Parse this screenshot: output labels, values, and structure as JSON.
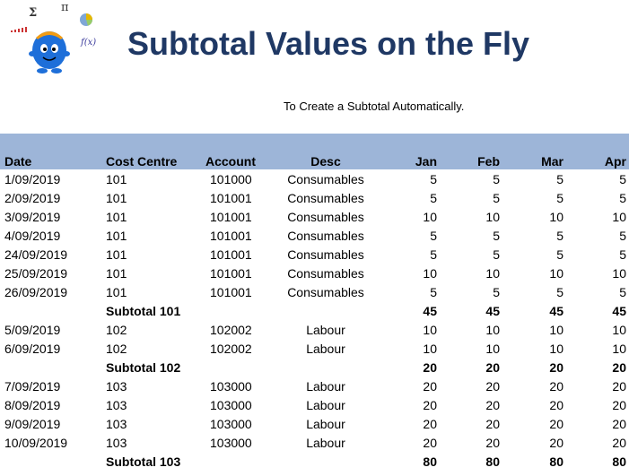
{
  "title": "Subtotal Values on the Fly",
  "subtitle": "To Create a Subtotal Automatically.",
  "logo": {
    "icons": [
      "sigma",
      "pi",
      "pie-chart",
      "f(x)",
      "bar-dots",
      "mascot"
    ],
    "sigma": "Σ",
    "pi": "π",
    "fx": "f(x)"
  },
  "table": {
    "columns": [
      "Date",
      "Cost Centre",
      "Account",
      "Desc",
      "Jan",
      "Feb",
      "Mar",
      "Apr"
    ],
    "rows": [
      {
        "type": "data",
        "date": "1/09/2019",
        "cc": "101",
        "account": "101000",
        "desc": "Consumables",
        "jan": "5",
        "feb": "5",
        "mar": "5",
        "apr": "5"
      },
      {
        "type": "data",
        "date": "2/09/2019",
        "cc": "101",
        "account": "101001",
        "desc": "Consumables",
        "jan": "5",
        "feb": "5",
        "mar": "5",
        "apr": "5"
      },
      {
        "type": "data",
        "date": "3/09/2019",
        "cc": "101",
        "account": "101001",
        "desc": "Consumables",
        "jan": "10",
        "feb": "10",
        "mar": "10",
        "apr": "10"
      },
      {
        "type": "data",
        "date": "4/09/2019",
        "cc": "101",
        "account": "101001",
        "desc": "Consumables",
        "jan": "5",
        "feb": "5",
        "mar": "5",
        "apr": "5"
      },
      {
        "type": "data",
        "date": "24/09/2019",
        "cc": "101",
        "account": "101001",
        "desc": "Consumables",
        "jan": "5",
        "feb": "5",
        "mar": "5",
        "apr": "5"
      },
      {
        "type": "data",
        "date": "25/09/2019",
        "cc": "101",
        "account": "101001",
        "desc": "Consumables",
        "jan": "10",
        "feb": "10",
        "mar": "10",
        "apr": "10"
      },
      {
        "type": "data",
        "date": "26/09/2019",
        "cc": "101",
        "account": "101001",
        "desc": "Consumables",
        "jan": "5",
        "feb": "5",
        "mar": "5",
        "apr": "5"
      },
      {
        "type": "subtotal",
        "label": "Subtotal 101",
        "jan": "45",
        "feb": "45",
        "mar": "45",
        "apr": "45"
      },
      {
        "type": "data",
        "date": "5/09/2019",
        "cc": "102",
        "account": "102002",
        "desc": "Labour",
        "jan": "10",
        "feb": "10",
        "mar": "10",
        "apr": "10"
      },
      {
        "type": "data",
        "date": "6/09/2019",
        "cc": "102",
        "account": "102002",
        "desc": "Labour",
        "jan": "10",
        "feb": "10",
        "mar": "10",
        "apr": "10"
      },
      {
        "type": "subtotal",
        "label": "Subtotal 102",
        "jan": "20",
        "feb": "20",
        "mar": "20",
        "apr": "20"
      },
      {
        "type": "data",
        "date": "7/09/2019",
        "cc": "103",
        "account": "103000",
        "desc": "Labour",
        "jan": "20",
        "feb": "20",
        "mar": "20",
        "apr": "20"
      },
      {
        "type": "data",
        "date": "8/09/2019",
        "cc": "103",
        "account": "103000",
        "desc": "Labour",
        "jan": "20",
        "feb": "20",
        "mar": "20",
        "apr": "20"
      },
      {
        "type": "data",
        "date": "9/09/2019",
        "cc": "103",
        "account": "103000",
        "desc": "Labour",
        "jan": "20",
        "feb": "20",
        "mar": "20",
        "apr": "20"
      },
      {
        "type": "data",
        "date": "10/09/2019",
        "cc": "103",
        "account": "103000",
        "desc": "Labour",
        "jan": "20",
        "feb": "20",
        "mar": "20",
        "apr": "20"
      },
      {
        "type": "subtotal",
        "label": "Subtotal 103",
        "jan": "80",
        "feb": "80",
        "mar": "80",
        "apr": "80"
      }
    ]
  },
  "colors": {
    "title": "#1f3864",
    "header_band": "#9db5d8",
    "mascot": "#1e6fd9"
  }
}
